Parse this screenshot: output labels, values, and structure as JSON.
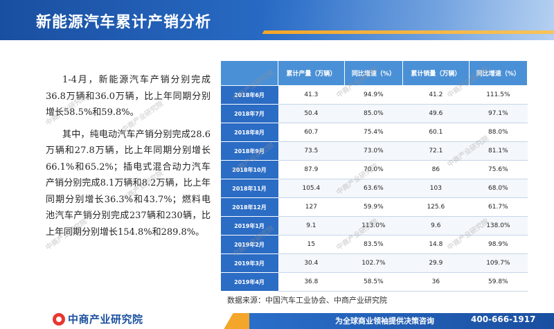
{
  "header": {
    "title": "新能源汽车累计产销分析"
  },
  "body_text": {
    "para1": "1-4月，新能源汽车产销分别完成36.8万辆和36.0万辆，比上年同期分别增长58.5%和59.8%。",
    "para2": "其中，纯电动汽车产销分别完成28.6万辆和27.8万辆，比上年同期分别增长66.1%和65.2%；插电式混合动力汽车产销分别完成8.1万辆和8.2万辆，比上年同期分别增长36.3%和43.7%；燃料电池汽车产销分别完成237辆和230辆，比上年同期分别增长154.8%和289.8%。"
  },
  "table": {
    "headers": [
      "累计产量（万辆）",
      "同比增速（%）",
      "累计销量（万辆）",
      "同比增速（%）"
    ],
    "rows": [
      {
        "month": "2018年6月",
        "prod": "41.3",
        "prod_g": "94.9%",
        "sales": "41.2",
        "sales_g": "111.5%"
      },
      {
        "month": "2018年7月",
        "prod": "50.4",
        "prod_g": "85.0%",
        "sales": "49.6",
        "sales_g": "97.1%"
      },
      {
        "month": "2018年8月",
        "prod": "60.7",
        "prod_g": "75.4%",
        "sales": "60.1",
        "sales_g": "88.0%"
      },
      {
        "month": "2018年9月",
        "prod": "73.5",
        "prod_g": "73.0%",
        "sales": "72.1",
        "sales_g": "81.1%"
      },
      {
        "month": "2018年10月",
        "prod": "87.9",
        "prod_g": "70.0%",
        "sales": "86",
        "sales_g": "75.6%"
      },
      {
        "month": "2018年11月",
        "prod": "105.4",
        "prod_g": "63.6%",
        "sales": "103",
        "sales_g": "68.0%"
      },
      {
        "month": "2018年12月",
        "prod": "127",
        "prod_g": "59.9%",
        "sales": "125.6",
        "sales_g": "61.7%"
      },
      {
        "month": "2019年1月",
        "prod": "9.1",
        "prod_g": "113.0%",
        "sales": "9.6",
        "sales_g": "138.0%"
      },
      {
        "month": "2019年2月",
        "prod": "15",
        "prod_g": "83.5%",
        "sales": "14.8",
        "sales_g": "98.9%"
      },
      {
        "month": "2019年3月",
        "prod": "30.4",
        "prod_g": "102.7%",
        "sales": "29.9",
        "sales_g": "109.7%"
      },
      {
        "month": "2019年4月",
        "prod": "36.8",
        "prod_g": "58.5%",
        "sales": "36",
        "sales_g": "59.8%"
      }
    ]
  },
  "source": "数据来源：中国汽车工业协会、中商产业研究院",
  "footer": {
    "logo_text": "中商产业研究院",
    "slogan": "为全球商业领袖提供决策咨询",
    "phone": "400-666-1917"
  },
  "watermark_text": "中商产业研究院",
  "colors": {
    "header_blue": "#1a4fa0",
    "table_header": "#4a90d6",
    "row_head": "#2b6cc4",
    "accent_orange": "#f4a62a",
    "logo_red": "#e8372f"
  }
}
